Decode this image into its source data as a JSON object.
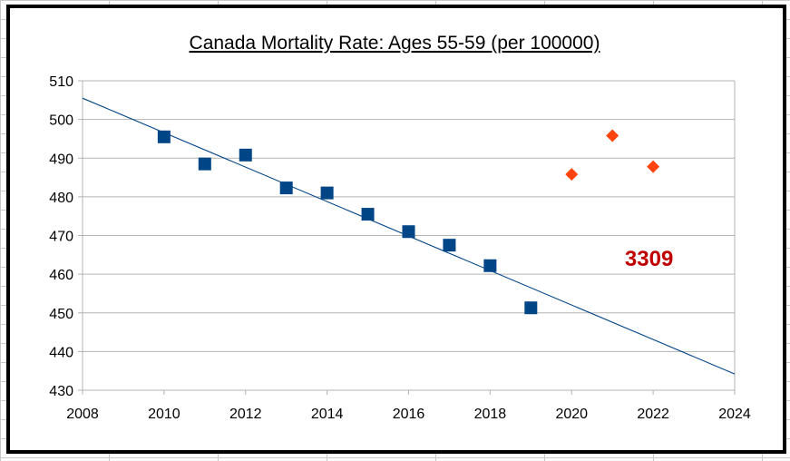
{
  "chart_data": {
    "type": "scatter",
    "title": "Canada Mortality Rate: Ages 55-59 (per 100000)",
    "xlabel": "",
    "ylabel": "",
    "xlim": [
      2008,
      2024
    ],
    "ylim": [
      430,
      510
    ],
    "x_ticks": [
      2008,
      2010,
      2012,
      2014,
      2016,
      2018,
      2020,
      2022,
      2024
    ],
    "y_ticks": [
      430,
      440,
      450,
      460,
      470,
      480,
      490,
      500,
      510
    ],
    "grid": "horizontal",
    "legend": "none",
    "series": [
      {
        "marker": "square",
        "color": "#004586",
        "x": [
          2010,
          2011,
          2012,
          2013,
          2014,
          2015,
          2016,
          2017,
          2018,
          2019
        ],
        "y": [
          495.5,
          488.5,
          490.8,
          482.3,
          481.0,
          475.5,
          471.0,
          467.5,
          462.2,
          451.3
        ]
      },
      {
        "marker": "diamond",
        "color": "#ff420e",
        "x": [
          2020,
          2021,
          2022
        ],
        "y": [
          485.8,
          495.8,
          487.8
        ]
      }
    ],
    "trendline": {
      "color": "#004586",
      "x": [
        2008,
        2024
      ],
      "y": [
        505.5,
        434.2
      ]
    },
    "annotations": [
      {
        "text": "3309",
        "x": 2021.9,
        "y": 464,
        "color": "#c00000"
      }
    ]
  }
}
